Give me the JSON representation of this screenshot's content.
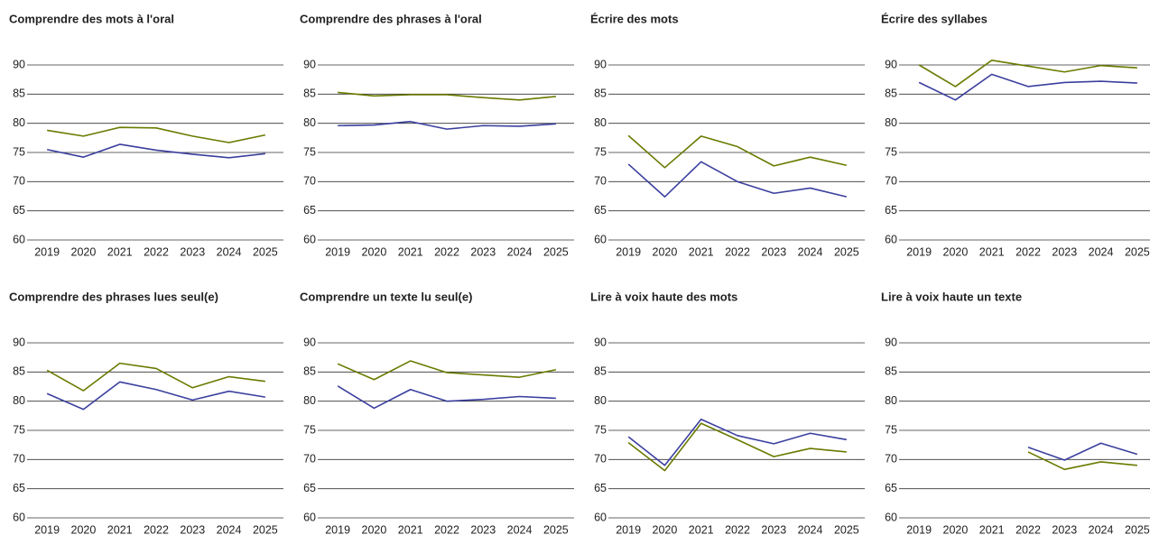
{
  "chart_data": [
    {
      "type": "line",
      "title": "Comprendre des mots à l'oral",
      "categories": [
        "2019",
        "2020",
        "2021",
        "2022",
        "2023",
        "2024",
        "2025"
      ],
      "series": [
        {
          "color": "#6b7a00",
          "values": [
            78.8,
            77.8,
            79.3,
            79.2,
            77.8,
            76.7,
            78.0
          ]
        },
        {
          "color": "#3a3f9e",
          "values": [
            75.5,
            74.2,
            76.4,
            75.4,
            74.7,
            74.1,
            74.8
          ]
        }
      ],
      "ylim": [
        60,
        90
      ],
      "yticks": [
        60,
        65,
        70,
        75,
        80,
        85,
        90
      ],
      "grid": true
    },
    {
      "type": "line",
      "title": "Comprendre des phrases à l'oral",
      "categories": [
        "2019",
        "2020",
        "2021",
        "2022",
        "2023",
        "2024",
        "2025"
      ],
      "series": [
        {
          "color": "#6b7a00",
          "values": [
            85.3,
            84.7,
            84.9,
            84.9,
            84.4,
            84.0,
            84.6
          ]
        },
        {
          "color": "#3a3f9e",
          "values": [
            79.6,
            79.7,
            80.3,
            79.0,
            79.6,
            79.5,
            79.9
          ]
        }
      ],
      "ylim": [
        60,
        90
      ],
      "yticks": [
        60,
        65,
        70,
        75,
        80,
        85,
        90
      ],
      "grid": true
    },
    {
      "type": "line",
      "title": "Écrire des mots",
      "categories": [
        "2019",
        "2020",
        "2021",
        "2022",
        "2023",
        "2024",
        "2025"
      ],
      "series": [
        {
          "color": "#6b7a00",
          "values": [
            77.9,
            72.4,
            77.8,
            76.0,
            72.7,
            74.2,
            72.8
          ]
        },
        {
          "color": "#3a3f9e",
          "values": [
            73.0,
            67.4,
            73.4,
            70.0,
            68.0,
            68.9,
            67.4
          ]
        }
      ],
      "ylim": [
        60,
        90
      ],
      "yticks": [
        60,
        65,
        70,
        75,
        80,
        85,
        90
      ],
      "grid": true
    },
    {
      "type": "line",
      "title": "Écrire des syllabes",
      "categories": [
        "2019",
        "2020",
        "2021",
        "2022",
        "2023",
        "2024",
        "2025"
      ],
      "series": [
        {
          "color": "#6b7a00",
          "values": [
            90.0,
            86.3,
            90.8,
            89.8,
            88.8,
            89.9,
            89.5
          ]
        },
        {
          "color": "#3a3f9e",
          "values": [
            87.0,
            84.0,
            88.4,
            86.3,
            87.0,
            87.2,
            86.9
          ]
        }
      ],
      "ylim": [
        60,
        90
      ],
      "yticks": [
        60,
        65,
        70,
        75,
        80,
        85,
        90
      ],
      "grid": true
    },
    {
      "type": "line",
      "title": "Comprendre des phrases lues seul(e)",
      "categories": [
        "2019",
        "2020",
        "2021",
        "2022",
        "2023",
        "2024",
        "2025"
      ],
      "series": [
        {
          "color": "#6b7a00",
          "values": [
            85.3,
            81.8,
            86.5,
            85.6,
            82.3,
            84.2,
            83.4
          ]
        },
        {
          "color": "#3a3f9e",
          "values": [
            81.3,
            78.6,
            83.3,
            82.0,
            80.2,
            81.7,
            80.7
          ]
        }
      ],
      "ylim": [
        60,
        90
      ],
      "yticks": [
        60,
        65,
        70,
        75,
        80,
        85,
        90
      ],
      "grid": true
    },
    {
      "type": "line",
      "title": "Comprendre un texte lu seul(e)",
      "categories": [
        "2019",
        "2020",
        "2021",
        "2022",
        "2023",
        "2024",
        "2025"
      ],
      "series": [
        {
          "color": "#6b7a00",
          "values": [
            86.4,
            83.7,
            86.9,
            84.9,
            84.5,
            84.1,
            85.4
          ]
        },
        {
          "color": "#3a3f9e",
          "values": [
            82.6,
            78.8,
            82.0,
            80.0,
            80.3,
            80.8,
            80.5
          ]
        }
      ],
      "ylim": [
        60,
        90
      ],
      "yticks": [
        60,
        65,
        70,
        75,
        80,
        85,
        90
      ],
      "grid": true
    },
    {
      "type": "line",
      "title": "Lire à voix haute des mots",
      "categories": [
        "2019",
        "2020",
        "2021",
        "2022",
        "2023",
        "2024",
        "2025"
      ],
      "series": [
        {
          "color": "#6b7a00",
          "values": [
            72.9,
            68.1,
            76.2,
            73.4,
            70.5,
            71.9,
            71.3
          ]
        },
        {
          "color": "#3a3f9e",
          "values": [
            73.9,
            69.0,
            76.9,
            74.1,
            72.7,
            74.5,
            73.4
          ]
        }
      ],
      "ylim": [
        60,
        90
      ],
      "yticks": [
        60,
        65,
        70,
        75,
        80,
        85,
        90
      ],
      "grid": true
    },
    {
      "type": "line",
      "title": "Lire à voix haute un texte",
      "categories": [
        "2019",
        "2020",
        "2021",
        "2022",
        "2023",
        "2024",
        "2025"
      ],
      "series": [
        {
          "color": "#6b7a00",
          "values": [
            null,
            null,
            null,
            71.3,
            68.3,
            69.6,
            69.0
          ]
        },
        {
          "color": "#3a3f9e",
          "values": [
            null,
            null,
            null,
            72.1,
            69.9,
            72.8,
            70.9
          ]
        }
      ],
      "ylim": [
        60,
        90
      ],
      "yticks": [
        60,
        65,
        70,
        75,
        80,
        85,
        90
      ],
      "grid": true
    }
  ]
}
